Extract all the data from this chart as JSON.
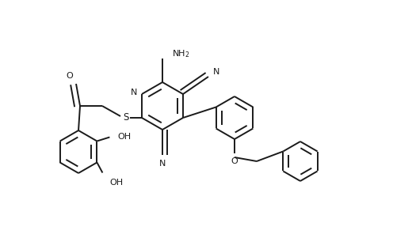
{
  "bg_color": "#ffffff",
  "line_color": "#1a1a1a",
  "line_width": 1.4,
  "dbo": 0.012,
  "figsize": [
    4.96,
    2.96
  ],
  "dpi": 100,
  "xlim": [
    0,
    4.96
  ],
  "ylim": [
    0,
    2.96
  ]
}
